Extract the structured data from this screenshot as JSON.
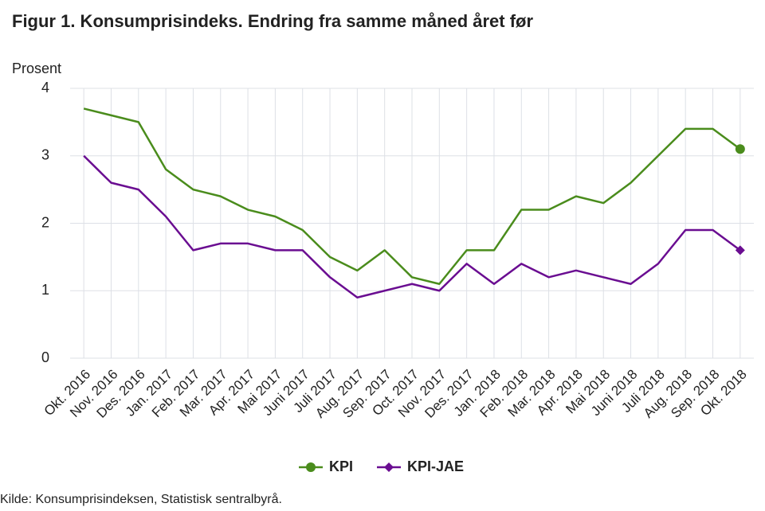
{
  "chart_data": {
    "type": "line",
    "title": "Figur 1. Konsumprisindeks. Endring fra samme måned året før",
    "y_label": "Prosent",
    "source": "Kilde: Konsumprisindeksen, Statistisk sentralbyrå.",
    "categories": [
      "Okt. 2016",
      "Nov. 2016",
      "Des. 2016",
      "Jan. 2017",
      "Feb. 2017",
      "Mar. 2017",
      "Apr. 2017",
      "Mai 2017",
      "Juni 2017",
      "Juli 2017",
      "Aug. 2017",
      "Sep. 2017",
      "Oct. 2017",
      "Nov. 2017",
      "Des. 2017",
      "Jan. 2018",
      "Feb. 2018",
      "Mar. 2018",
      "Apr. 2018",
      "Mai 2018",
      "Juni 2018",
      "Juli 2018",
      "Aug. 2018",
      "Sep. 2018",
      "Okt. 2018"
    ],
    "series": [
      {
        "name": "KPI",
        "color": "#4a8c1c",
        "marker": "circle",
        "values": [
          3.7,
          3.6,
          3.5,
          2.8,
          2.5,
          2.4,
          2.2,
          2.1,
          1.9,
          1.5,
          1.3,
          1.6,
          1.2,
          1.1,
          1.6,
          1.6,
          2.2,
          2.2,
          2.4,
          2.3,
          2.6,
          3.0,
          3.4,
          3.4,
          3.1
        ]
      },
      {
        "name": "KPI-JAE",
        "color": "#6a0d91",
        "marker": "diamond",
        "values": [
          3.0,
          2.6,
          2.5,
          2.1,
          1.6,
          1.7,
          1.7,
          1.6,
          1.6,
          1.2,
          0.9,
          1.0,
          1.1,
          1.0,
          1.4,
          1.1,
          1.4,
          1.2,
          1.3,
          1.2,
          1.1,
          1.4,
          1.9,
          1.9,
          1.6
        ]
      }
    ],
    "ylim": [
      0,
      4
    ],
    "yticks": [
      0,
      1,
      2,
      3,
      4
    ],
    "grid": true,
    "legend": "bottom"
  }
}
